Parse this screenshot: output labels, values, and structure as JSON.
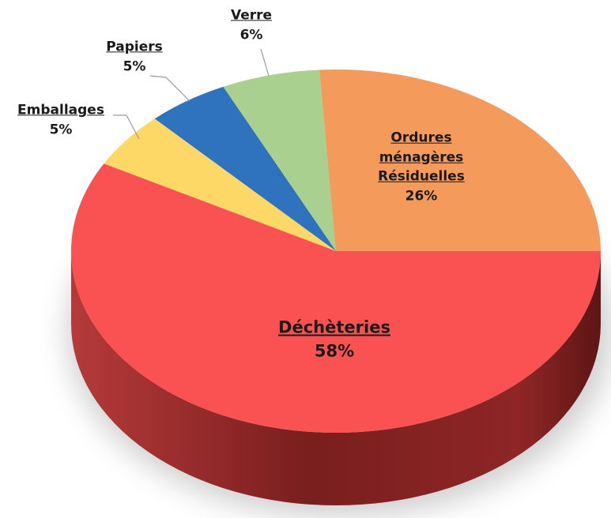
{
  "chart_data": {
    "type": "pie",
    "categories": [
      "Ordures ménagères Résiduelles",
      "Verre",
      "Papiers",
      "Emballages",
      "Déchèteries"
    ],
    "values": [
      26,
      6,
      5,
      5,
      58
    ],
    "value_labels": [
      "26%",
      "6%",
      "5%",
      "5%",
      "58%"
    ],
    "colors": [
      "#f49b5c",
      "#a9d08e",
      "#2f72bd",
      "#fed866",
      "#fa5252"
    ]
  }
}
